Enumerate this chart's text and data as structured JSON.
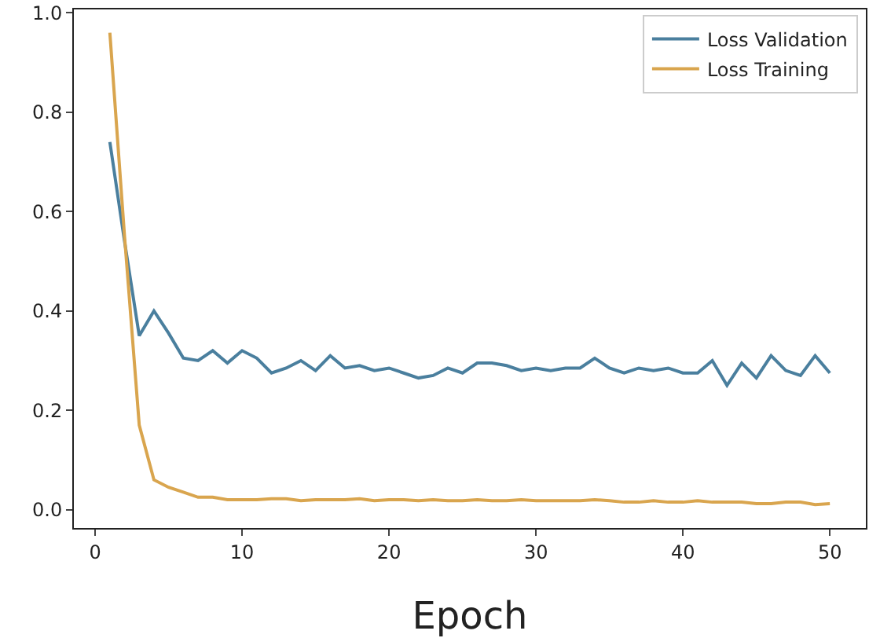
{
  "chart_data": {
    "type": "line",
    "xlabel": "Epoch",
    "x": [
      1,
      2,
      3,
      4,
      5,
      6,
      7,
      8,
      9,
      10,
      11,
      12,
      13,
      14,
      15,
      16,
      17,
      18,
      19,
      20,
      21,
      22,
      23,
      24,
      25,
      26,
      27,
      28,
      29,
      30,
      31,
      32,
      33,
      34,
      35,
      36,
      37,
      38,
      39,
      40,
      41,
      42,
      43,
      44,
      45,
      46,
      47,
      48,
      49,
      50
    ],
    "series": [
      {
        "name": "Loss Validation",
        "color": "#4a7f9e",
        "values": [
          0.74,
          0.54,
          0.35,
          0.4,
          0.355,
          0.305,
          0.3,
          0.32,
          0.295,
          0.32,
          0.305,
          0.275,
          0.285,
          0.3,
          0.28,
          0.31,
          0.285,
          0.29,
          0.28,
          0.285,
          0.275,
          0.265,
          0.27,
          0.285,
          0.275,
          0.295,
          0.295,
          0.29,
          0.28,
          0.285,
          0.28,
          0.285,
          0.285,
          0.305,
          0.285,
          0.275,
          0.285,
          0.28,
          0.285,
          0.275,
          0.275,
          0.3,
          0.25,
          0.295,
          0.265,
          0.31,
          0.28,
          0.27,
          0.31,
          0.275
        ]
      },
      {
        "name": "Loss Training",
        "color": "#d9a54e",
        "values": [
          0.96,
          0.55,
          0.17,
          0.06,
          0.045,
          0.035,
          0.025,
          0.025,
          0.02,
          0.02,
          0.02,
          0.022,
          0.022,
          0.018,
          0.02,
          0.02,
          0.02,
          0.022,
          0.018,
          0.02,
          0.02,
          0.018,
          0.02,
          0.018,
          0.018,
          0.02,
          0.018,
          0.018,
          0.02,
          0.018,
          0.018,
          0.018,
          0.018,
          0.02,
          0.018,
          0.015,
          0.015,
          0.018,
          0.015,
          0.015,
          0.018,
          0.015,
          0.015,
          0.015,
          0.012,
          0.012,
          0.015,
          0.015,
          0.01,
          0.012
        ]
      }
    ],
    "xlim": [
      -1.45,
      52.45
    ],
    "xticks": [
      0,
      10,
      20,
      30,
      40,
      50
    ],
    "ylim": [
      -0.037,
      1.007
    ],
    "yticks": [
      {
        "value": 0,
        "label": "0.0"
      },
      0.2,
      0.4,
      0.6,
      0.8,
      {
        "value": 1,
        "label": "1.0"
      }
    ],
    "grid": false,
    "legend": "top right",
    "marker": "none",
    "line_style": "solid"
  }
}
